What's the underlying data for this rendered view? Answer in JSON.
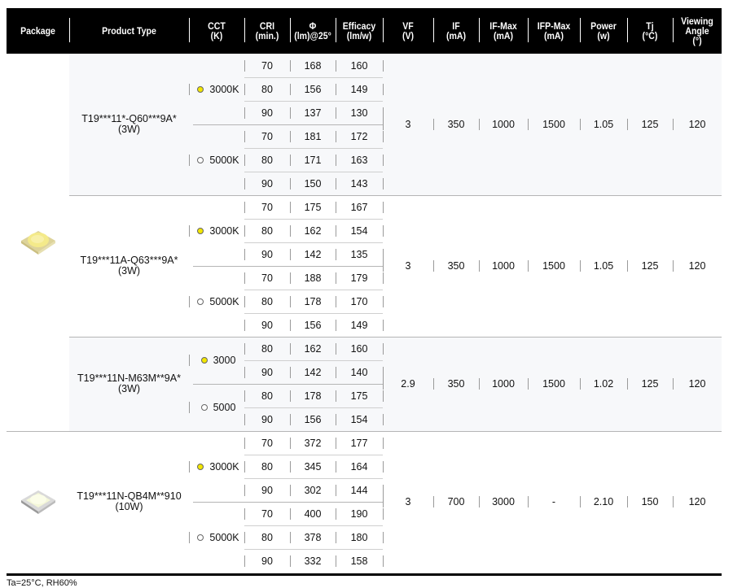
{
  "headers": [
    {
      "key": "package",
      "label": "Package"
    },
    {
      "key": "product",
      "label": "Product Type"
    },
    {
      "key": "cct",
      "label": "CCT\n(K)"
    },
    {
      "key": "cri",
      "label": "CRI\n(min.)"
    },
    {
      "key": "flux",
      "label": "Φ\n(lm)@25°"
    },
    {
      "key": "efficacy",
      "label": "Efficacy\n(lm/w)"
    },
    {
      "key": "vf",
      "label": "VF\n(V)"
    },
    {
      "key": "if",
      "label": "IF\n(mA)"
    },
    {
      "key": "ifmax",
      "label": "IF-Max\n(mA)"
    },
    {
      "key": "ifpmax",
      "label": "IFP-Max\n(mA)"
    },
    {
      "key": "power",
      "label": "Power\n(w)"
    },
    {
      "key": "tj",
      "label": "Tj\n(°C)"
    },
    {
      "key": "angle",
      "label": "Viewing\nAngle\n(°)"
    }
  ],
  "colors": {
    "warm_dot": "#f2e600",
    "cool_dot": "#ffffff",
    "header_bg": "#000000",
    "alt_row_bg": "#f7f8fa"
  },
  "packages": [
    {
      "icon": "led-3w-yellow-package-icon",
      "groups": [
        0,
        1,
        2
      ]
    },
    {
      "icon": "led-10w-white-package-icon",
      "groups": [
        3
      ]
    }
  ],
  "groups": [
    {
      "product": "T19***11*-Q60***9A*",
      "wattage": "(3W)",
      "shaded": true,
      "cct": [
        {
          "label": "3000K",
          "dot": "warm",
          "rows": [
            [
              "70",
              "168",
              "160"
            ],
            [
              "80",
              "156",
              "149"
            ],
            [
              "90",
              "137",
              "130"
            ]
          ]
        },
        {
          "label": "5000K",
          "dot": "cool",
          "rows": [
            [
              "70",
              "181",
              "172"
            ],
            [
              "80",
              "171",
              "163"
            ],
            [
              "90",
              "150",
              "143"
            ]
          ]
        }
      ],
      "specs": [
        "3",
        "350",
        "1000",
        "1500",
        "1.05",
        "125",
        "120"
      ]
    },
    {
      "product": "T19***11A-Q63***9A*",
      "wattage": "(3W)",
      "shaded": false,
      "cct": [
        {
          "label": "3000K",
          "dot": "warm",
          "rows": [
            [
              "70",
              "175",
              "167"
            ],
            [
              "80",
              "162",
              "154"
            ],
            [
              "90",
              "142",
              "135"
            ]
          ]
        },
        {
          "label": "5000K",
          "dot": "cool",
          "rows": [
            [
              "70",
              "188",
              "179"
            ],
            [
              "80",
              "178",
              "170"
            ],
            [
              "90",
              "156",
              "149"
            ]
          ]
        }
      ],
      "specs": [
        "3",
        "350",
        "1000",
        "1500",
        "1.05",
        "125",
        "120"
      ]
    },
    {
      "product": "T19***11N-M63M**9A*",
      "wattage": "(3W)",
      "shaded": true,
      "cct": [
        {
          "label": "3000",
          "dot": "warm",
          "rows": [
            [
              "80",
              "162",
              "160"
            ],
            [
              "90",
              "142",
              "140"
            ]
          ]
        },
        {
          "label": "5000",
          "dot": "cool",
          "rows": [
            [
              "80",
              "178",
              "175"
            ],
            [
              "90",
              "156",
              "154"
            ]
          ]
        }
      ],
      "specs": [
        "2.9",
        "350",
        "1000",
        "1500",
        "1.02",
        "125",
        "120"
      ]
    },
    {
      "product": "T19***11N-QB4M**910",
      "wattage": "(10W)",
      "shaded": false,
      "cct": [
        {
          "label": "3000K",
          "dot": "warm",
          "rows": [
            [
              "70",
              "372",
              "177"
            ],
            [
              "80",
              "345",
              "164"
            ],
            [
              "90",
              "302",
              "144"
            ]
          ]
        },
        {
          "label": "5000K",
          "dot": "cool",
          "rows": [
            [
              "70",
              "400",
              "190"
            ],
            [
              "80",
              "378",
              "180"
            ],
            [
              "90",
              "332",
              "158"
            ]
          ]
        }
      ],
      "specs": [
        "3",
        "700",
        "3000",
        "-",
        "2.10",
        "150",
        "120"
      ]
    }
  ],
  "footnote": "Ta=25°C, RH60%"
}
